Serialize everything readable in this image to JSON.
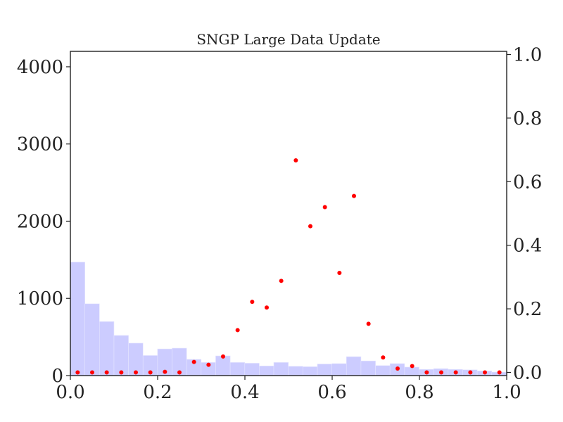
{
  "chart_data": {
    "type": "bar",
    "title": "SNGP Large Data Update",
    "xlabel": "",
    "ylabel": "",
    "y2label": "",
    "xlim": [
      0.0,
      1.0
    ],
    "ylim": [
      0,
      4200
    ],
    "y2lim": [
      -0.01,
      1.01
    ],
    "x_ticks": [
      0.0,
      0.2,
      0.4,
      0.6,
      0.8,
      1.0
    ],
    "x_tick_labels": [
      "0.0",
      "0.2",
      "0.4",
      "0.6",
      "0.8",
      "1.0"
    ],
    "y_ticks": [
      0,
      1000,
      2000,
      3000,
      4000
    ],
    "y_tick_labels": [
      "0",
      "1000",
      "2000",
      "3000",
      "4000"
    ],
    "y2_ticks": [
      0.0,
      0.2,
      0.4,
      0.6,
      0.8,
      1.0
    ],
    "y2_tick_labels": [
      "0.0",
      "0.2",
      "0.4",
      "0.6",
      "0.8",
      "1.0"
    ],
    "grid": false,
    "histogram": {
      "axis": "left",
      "color": "#ccccff",
      "bin_start": 0.0,
      "bin_width": 0.0333,
      "values": [
        1470,
        930,
        700,
        520,
        420,
        260,
        345,
        355,
        210,
        170,
        255,
        170,
        160,
        125,
        170,
        120,
        115,
        150,
        155,
        245,
        190,
        130,
        155,
        110,
        80,
        90,
        80,
        75,
        60,
        45
      ]
    },
    "scatter": {
      "axis": "right",
      "color": "#ff0000",
      "x": [
        0.0167,
        0.05,
        0.0833,
        0.1167,
        0.15,
        0.1833,
        0.2167,
        0.25,
        0.2833,
        0.3167,
        0.35,
        0.3833,
        0.4167,
        0.45,
        0.4833,
        0.5167,
        0.55,
        0.5833,
        0.6167,
        0.65,
        0.6833,
        0.7167,
        0.75,
        0.7833,
        0.8167,
        0.85,
        0.8833,
        0.9167,
        0.95,
        0.9833
      ],
      "y": [
        0.0,
        0.0,
        0.0,
        0.0,
        0.0,
        0.0,
        0.002,
        0.0,
        0.033,
        0.024,
        0.05,
        0.133,
        0.222,
        0.204,
        0.288,
        0.667,
        0.46,
        0.52,
        0.313,
        0.555,
        0.153,
        0.047,
        0.012,
        0.02,
        0.0,
        0.0,
        0.0,
        0.0,
        0.0,
        0.0
      ]
    }
  }
}
